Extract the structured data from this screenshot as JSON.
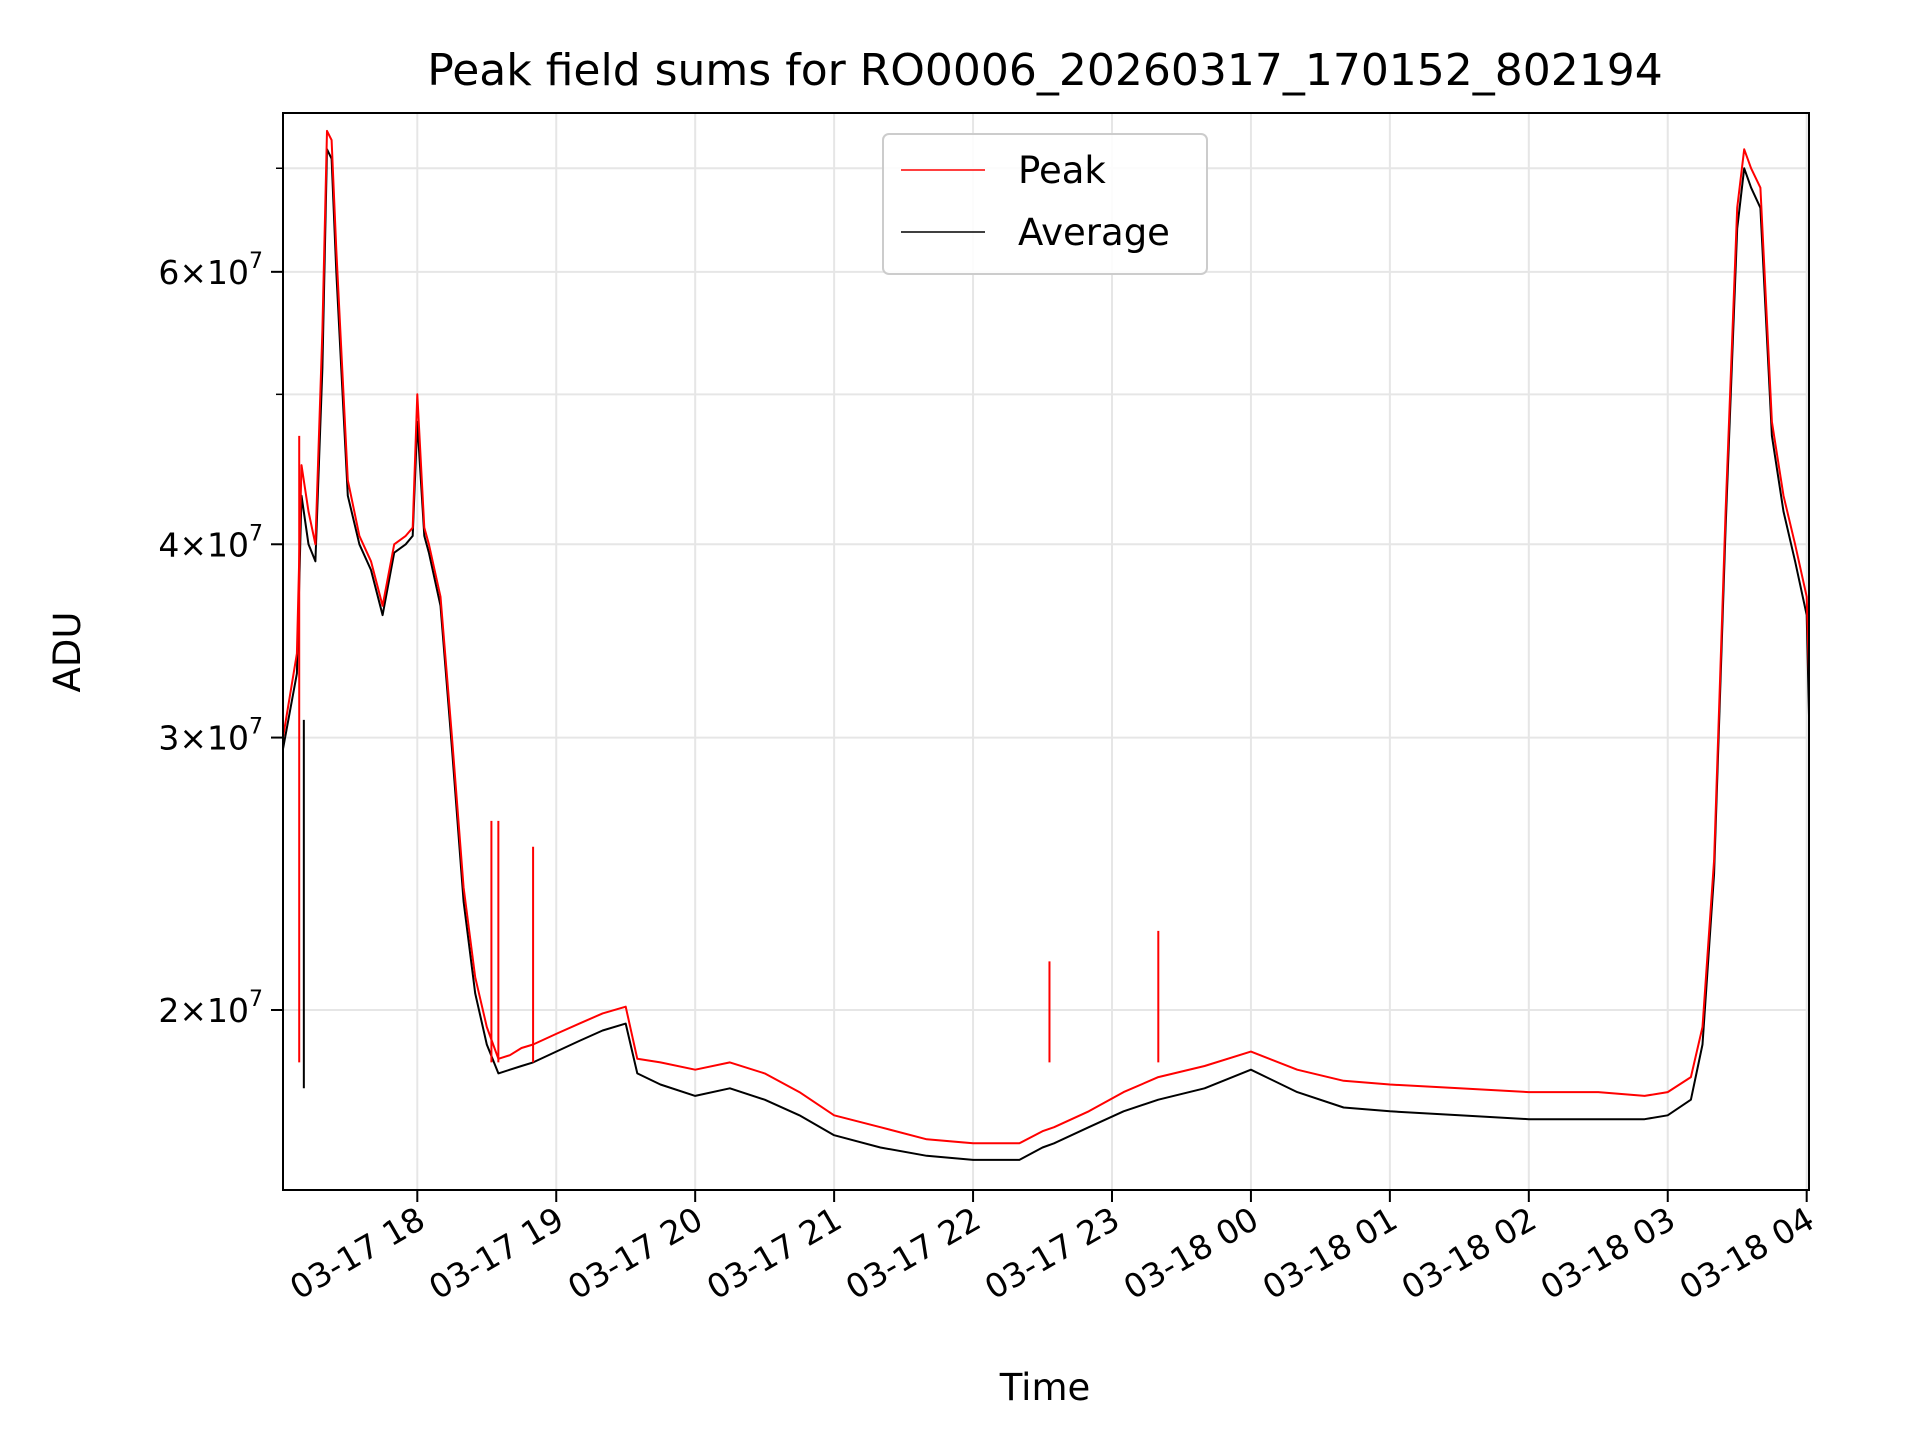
{
  "chart_data": {
    "type": "line",
    "title": "Peak field sums for RO0006_20260317_170152_802194",
    "xlabel": "Time",
    "ylabel": "ADU",
    "yscale": "log",
    "ylim": [
      15300000,
      76000000
    ],
    "xlim": [
      "03-17 17:02",
      "03-18 04:01"
    ],
    "x_ticks": [
      "03-17 18",
      "03-17 19",
      "03-17 20",
      "03-17 21",
      "03-17 22",
      "03-17 23",
      "03-18 00",
      "03-18 01",
      "03-18 02",
      "03-18 03",
      "03-18 04"
    ],
    "y_ticks": [
      {
        "value": 20000000,
        "mantissa": "2",
        "exponent": "7"
      },
      {
        "value": 30000000,
        "mantissa": "3",
        "exponent": "7"
      },
      {
        "value": 40000000,
        "mantissa": "4",
        "exponent": "7"
      },
      {
        "value": 60000000,
        "mantissa": "6",
        "exponent": "7"
      }
    ],
    "grid": true,
    "legend_position": "upper center",
    "series": [
      {
        "name": "Peak",
        "color": "#ff0000",
        "x": [
          "03-17 17:02",
          "03-17 17:08",
          "03-17 17:10",
          "03-17 17:13",
          "03-17 17:16",
          "03-17 17:19",
          "03-17 17:21",
          "03-17 17:23",
          "03-17 17:25",
          "03-17 17:30",
          "03-17 17:35",
          "03-17 17:40",
          "03-17 17:45",
          "03-17 17:50",
          "03-17 17:55",
          "03-17 17:58",
          "03-17 18:00",
          "03-17 18:03",
          "03-17 18:05",
          "03-17 18:10",
          "03-17 18:15",
          "03-17 18:20",
          "03-17 18:25",
          "03-17 18:30",
          "03-17 18:35",
          "03-17 18:40",
          "03-17 18:45",
          "03-17 18:50",
          "03-17 19:00",
          "03-17 19:10",
          "03-17 19:20",
          "03-17 19:30",
          "03-17 19:35",
          "03-17 19:45",
          "03-17 20:00",
          "03-17 20:15",
          "03-17 20:30",
          "03-17 20:45",
          "03-17 21:00",
          "03-17 21:20",
          "03-17 21:40",
          "03-17 22:00",
          "03-17 22:20",
          "03-17 22:30",
          "03-17 22:35",
          "03-17 22:50",
          "03-17 23:05",
          "03-17 23:20",
          "03-17 23:40",
          "03-18 00:00",
          "03-18 00:20",
          "03-18 00:40",
          "03-18 01:00",
          "03-18 01:30",
          "03-18 02:00",
          "03-18 02:30",
          "03-18 02:50",
          "03-18 03:00",
          "03-18 03:10",
          "03-18 03:15",
          "03-18 03:20",
          "03-18 03:25",
          "03-18 03:30",
          "03-18 03:33",
          "03-18 03:36",
          "03-18 03:40",
          "03-18 03:45",
          "03-18 03:50",
          "03-18 03:55",
          "03-18 04:00",
          "03-18 04:01"
        ],
        "y": [
          30000000,
          34000000,
          45000000,
          42000000,
          40000000,
          55000000,
          74000000,
          73000000,
          62000000,
          44000000,
          40500000,
          39000000,
          36500000,
          40000000,
          40500000,
          41000000,
          50000000,
          41000000,
          40000000,
          37000000,
          30000000,
          24000000,
          21000000,
          19500000,
          18600000,
          18700000,
          18900000,
          19000000,
          19300000,
          19600000,
          19900000,
          20100000,
          18600000,
          18500000,
          18300000,
          18500000,
          18200000,
          17700000,
          17100000,
          16800000,
          16500000,
          16400000,
          16400000,
          16700000,
          16800000,
          17200000,
          17700000,
          18100000,
          18400000,
          18800000,
          18300000,
          18000000,
          17900000,
          17800000,
          17700000,
          17700000,
          17600000,
          17700000,
          18100000,
          19500000,
          25000000,
          42000000,
          66000000,
          72000000,
          70000000,
          68000000,
          48000000,
          43000000,
          40000000,
          37000000,
          33000000
        ]
      },
      {
        "name": "Average",
        "color": "#000000",
        "x": [
          "03-17 17:02",
          "03-17 17:08",
          "03-17 17:10",
          "03-17 17:13",
          "03-17 17:16",
          "03-17 17:19",
          "03-17 17:21",
          "03-17 17:23",
          "03-17 17:25",
          "03-17 17:30",
          "03-17 17:35",
          "03-17 17:40",
          "03-17 17:45",
          "03-17 17:50",
          "03-17 17:55",
          "03-17 17:58",
          "03-17 18:00",
          "03-17 18:03",
          "03-17 18:05",
          "03-17 18:10",
          "03-17 18:15",
          "03-17 18:20",
          "03-17 18:25",
          "03-17 18:30",
          "03-17 18:35",
          "03-17 18:40",
          "03-17 18:45",
          "03-17 18:50",
          "03-17 19:00",
          "03-17 19:10",
          "03-17 19:20",
          "03-17 19:30",
          "03-17 19:35",
          "03-17 19:45",
          "03-17 20:00",
          "03-17 20:15",
          "03-17 20:30",
          "03-17 20:45",
          "03-17 21:00",
          "03-17 21:20",
          "03-17 21:40",
          "03-17 22:00",
          "03-17 22:20",
          "03-17 22:30",
          "03-17 22:35",
          "03-17 22:50",
          "03-17 23:05",
          "03-17 23:20",
          "03-17 23:40",
          "03-18 00:00",
          "03-18 00:20",
          "03-18 00:40",
          "03-18 01:00",
          "03-18 01:30",
          "03-18 02:00",
          "03-18 02:30",
          "03-18 02:50",
          "03-18 03:00",
          "03-18 03:10",
          "03-18 03:15",
          "03-18 03:20",
          "03-18 03:25",
          "03-18 03:30",
          "03-18 03:33",
          "03-18 03:36",
          "03-18 03:40",
          "03-18 03:45",
          "03-18 03:50",
          "03-18 03:55",
          "03-18 04:00",
          "03-18 04:01"
        ],
        "y": [
          29500000,
          33000000,
          43000000,
          40000000,
          39000000,
          52000000,
          72000000,
          71000000,
          60000000,
          43000000,
          40000000,
          38500000,
          36000000,
          39500000,
          40000000,
          40500000,
          48000000,
          40500000,
          39500000,
          36500000,
          29500000,
          23500000,
          20500000,
          19000000,
          18200000,
          18300000,
          18400000,
          18500000,
          18800000,
          19100000,
          19400000,
          19600000,
          18200000,
          17900000,
          17600000,
          17800000,
          17500000,
          17100000,
          16600000,
          16300000,
          16100000,
          16000000,
          16000000,
          16300000,
          16400000,
          16800000,
          17200000,
          17500000,
          17800000,
          18300000,
          17700000,
          17300000,
          17200000,
          17100000,
          17000000,
          17000000,
          17000000,
          17100000,
          17500000,
          19000000,
          24500000,
          41000000,
          64000000,
          70000000,
          68000000,
          66000000,
          47000000,
          42000000,
          39000000,
          36000000,
          31000000
        ]
      }
    ],
    "spikes": [
      {
        "series": "Peak",
        "x": "03-17 17:09",
        "y": 47000000
      },
      {
        "series": "Peak",
        "x": "03-17 18:32",
        "y": 26500000
      },
      {
        "series": "Peak",
        "x": "03-17 18:35",
        "y": 26500000
      },
      {
        "series": "Peak",
        "x": "03-17 18:50",
        "y": 25500000
      },
      {
        "series": "Peak",
        "x": "03-17 22:33",
        "y": 21500000
      },
      {
        "series": "Peak",
        "x": "03-17 23:20",
        "y": 22500000
      },
      {
        "series": "Average",
        "x": "03-17 17:11",
        "y": 30800000
      }
    ]
  }
}
